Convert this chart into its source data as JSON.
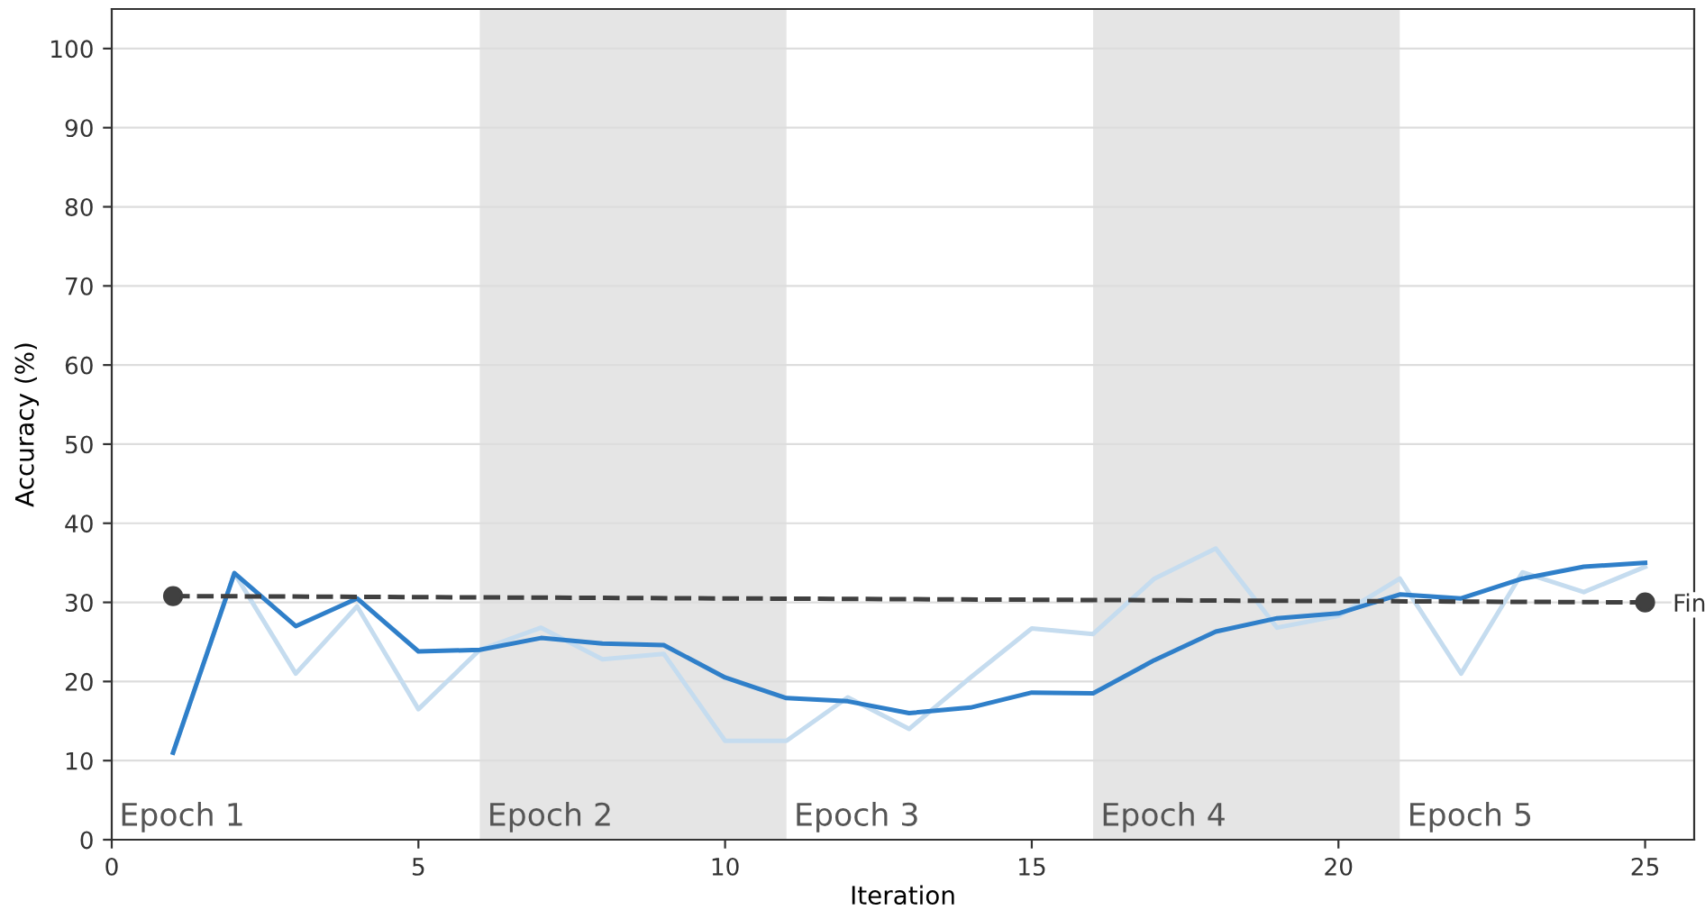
{
  "chart_data": {
    "type": "line",
    "xlabel": "Iteration",
    "ylabel": "Accuracy (%)",
    "xlim": [
      0,
      25.8
    ],
    "xticks": [
      0,
      5,
      10,
      15,
      20,
      25
    ],
    "ylim": [
      0,
      105
    ],
    "yticks": [
      0,
      10,
      20,
      30,
      40,
      50,
      60,
      70,
      80,
      90,
      100
    ],
    "grid": "y",
    "legend": false,
    "bands": [
      {
        "axis": "x",
        "from": 6,
        "to": 11,
        "label": "Epoch 2",
        "color": "#e5e5e5"
      },
      {
        "axis": "x",
        "from": 16,
        "to": 21,
        "label": "Epoch 4",
        "color": "#e5e5e5"
      }
    ],
    "x": [
      1,
      2,
      3,
      4,
      5,
      6,
      7,
      8,
      9,
      10,
      11,
      12,
      13,
      14,
      15,
      16,
      17,
      18,
      19,
      20,
      21,
      22,
      23,
      24,
      25
    ],
    "series": [
      {
        "color": "#c5dcef",
        "line_style": "solid",
        "marker": "none",
        "values": [
          11,
          33.7,
          21,
          29.5,
          16.5,
          24,
          26.8,
          22.8,
          23.5,
          12.5,
          12.5,
          18,
          14,
          20.5,
          26.7,
          26,
          33,
          36.8,
          26.8,
          28.3,
          33,
          21,
          33.8,
          31.3,
          34.5
        ]
      },
      {
        "color": "#2f7fc9",
        "line_style": "solid",
        "marker": "none",
        "values": [
          11,
          33.7,
          27,
          30.5,
          23.8,
          24,
          25.5,
          24.8,
          24.6,
          20.5,
          17.9,
          17.5,
          16,
          16.7,
          18.6,
          18.5,
          22.7,
          26.3,
          28,
          28.6,
          31,
          30.5,
          33,
          34.5,
          35
        ]
      },
      {
        "color": "#404040",
        "line_style": "dashed",
        "marker": "circle",
        "x": [
          1,
          25
        ],
        "values": [
          30.8,
          30
        ]
      }
    ],
    "annotations": [
      {
        "text": "Fin",
        "x": 25,
        "y": 30
      },
      "Epoch 1",
      {
        "text": "Epoch 3",
        "x": 11,
        "y": 0
      },
      {
        "text": "Epoch 5",
        "x": 21,
        "y": 0
      }
    ]
  }
}
